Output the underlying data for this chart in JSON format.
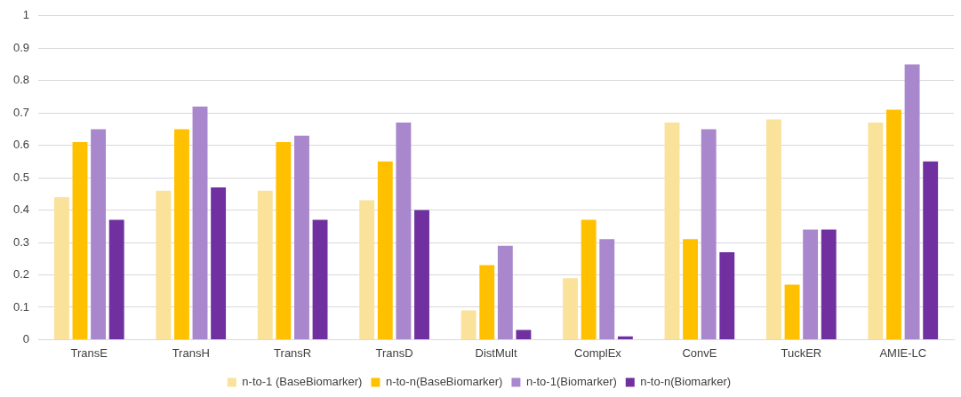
{
  "chart_data": {
    "type": "bar",
    "categories": [
      "TransE",
      "TransH",
      "TransR",
      "TransD",
      "DistMult",
      "ComplEx",
      "ConvE",
      "TuckER",
      "AMIE-LC"
    ],
    "series": [
      {
        "name": "n-to-1 (BaseBiomarker)",
        "color": "#fae29a",
        "values": [
          0.44,
          0.46,
          0.46,
          0.43,
          0.09,
          0.19,
          0.67,
          0.68,
          0.67
        ]
      },
      {
        "name": "n-to-n(BaseBiomarker)",
        "color": "#ffc000",
        "values": [
          0.61,
          0.65,
          0.61,
          0.55,
          0.23,
          0.37,
          0.31,
          0.17,
          0.71
        ]
      },
      {
        "name": "n-to-1(Biomarker)",
        "color": "#a987cc",
        "values": [
          0.65,
          0.72,
          0.63,
          0.67,
          0.29,
          0.31,
          0.65,
          0.34,
          0.85
        ]
      },
      {
        "name": "n-to-n(Biomarker)",
        "color": "#7030a0",
        "values": [
          0.37,
          0.47,
          0.37,
          0.4,
          0.03,
          0.01,
          0.27,
          0.34,
          0.55
        ]
      }
    ],
    "ylim": [
      0,
      1
    ],
    "yticks": [
      0,
      0.1,
      0.2,
      0.3,
      0.4,
      0.5,
      0.6,
      0.7,
      0.8,
      0.9,
      1
    ],
    "grid": "y",
    "legend": "bottom"
  }
}
